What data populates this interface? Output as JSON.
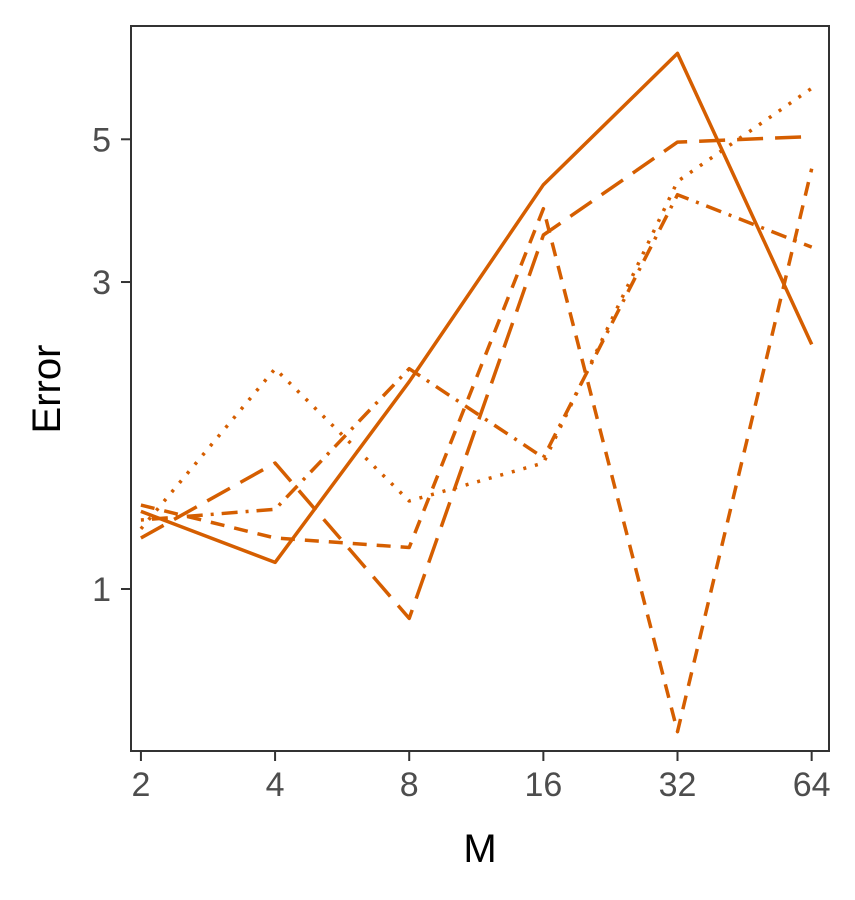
{
  "chart_data": {
    "type": "line",
    "title": "",
    "xlabel": "M",
    "ylabel": "Error",
    "x_scale": "log2",
    "y_scale": "log",
    "x": [
      2,
      4,
      8,
      16,
      32,
      64
    ],
    "x_tick_labels": [
      "2",
      "4",
      "8",
      "16",
      "32",
      "64"
    ],
    "y_ticks": [
      1,
      3,
      5
    ],
    "y_tick_labels": [
      "1",
      "3",
      "5"
    ],
    "xlim": [
      1.9,
      70
    ],
    "ylim": [
      0.56,
      7.5
    ],
    "grid": false,
    "legend": "none",
    "color": "#D55E00",
    "series": [
      {
        "dash": "solid",
        "values": [
          1.32,
          1.1,
          2.1,
          4.25,
          6.8,
          2.4
        ]
      },
      {
        "dash": "long-dash",
        "values": [
          1.2,
          1.57,
          0.9,
          3.55,
          4.95,
          5.05
        ]
      },
      {
        "dash": "short-dash",
        "values": [
          1.35,
          1.2,
          1.16,
          3.9,
          0.6,
          4.5
        ]
      },
      {
        "dash": "dot",
        "values": [
          1.24,
          2.2,
          1.37,
          1.57,
          4.3,
          6.0
        ]
      },
      {
        "dash": "dot-dash",
        "values": [
          1.28,
          1.33,
          2.2,
          1.6,
          4.1,
          3.4
        ]
      }
    ]
  }
}
